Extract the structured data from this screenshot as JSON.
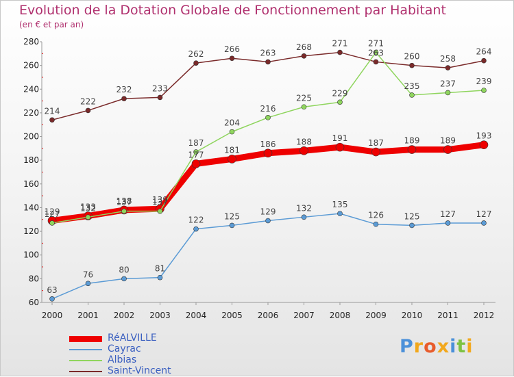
{
  "title": "Evolution de la Dotation Globale de Fonctionnement par Habitant",
  "subtitle": "(en € et par an)",
  "logo": {
    "text": "Proxiti",
    "letters": [
      {
        "ch": "P",
        "color": "#4a90d9"
      },
      {
        "ch": "r",
        "color": "#f2a81d"
      },
      {
        "ch": "o",
        "color": "#e85c2c"
      },
      {
        "ch": "x",
        "color": "#f2a81d"
      },
      {
        "ch": "i",
        "color": "#4a90d9"
      },
      {
        "ch": "t",
        "color": "#7dc242"
      },
      {
        "ch": "i",
        "color": "#f2a81d"
      }
    ]
  },
  "chart_data": {
    "type": "line",
    "title": "Evolution de la Dotation Globale de Fonctionnement par Habitant",
    "subtitle": "(en € et par an)",
    "x": [
      "2000",
      "2001",
      "2002",
      "2003",
      "2004",
      "2005",
      "2006",
      "2007",
      "2008",
      "2009",
      "2010",
      "2011",
      "2012"
    ],
    "y_ticks": [
      60,
      80,
      100,
      120,
      140,
      160,
      180,
      200,
      220,
      240,
      260,
      280
    ],
    "ylim": [
      60,
      280
    ],
    "grid": false,
    "legend_position": "bottom-left",
    "series": [
      {
        "name": "RéALVILLE",
        "color": "#ee0000",
        "values": [
          129,
          133,
          138,
          139,
          177,
          181,
          186,
          188,
          191,
          187,
          189,
          189,
          193
        ],
        "labels": [
          "129",
          "133",
          "138",
          "139",
          "177",
          "181",
          "186",
          "188",
          "191",
          "187",
          "189",
          "189",
          "193"
        ],
        "emphasis": true
      },
      {
        "name": "Cayrac",
        "color": "#5b9bd5",
        "values": [
          63,
          76,
          80,
          81,
          122,
          125,
          129,
          132,
          135,
          126,
          125,
          127,
          127
        ],
        "labels": [
          "63",
          "76",
          "80",
          "81",
          "122",
          "125",
          "129",
          "132",
          "135",
          "126",
          "125",
          "127",
          "127"
        ]
      },
      {
        "name": "Albias",
        "color": "#8fd55e",
        "values": [
          127,
          132,
          137,
          137,
          187,
          204,
          216,
          225,
          229,
          271,
          235,
          237,
          239
        ],
        "labels": [
          "127",
          "132",
          "137",
          "137",
          "187",
          "204",
          "216",
          "225",
          "229",
          "271",
          "235",
          "237",
          "239"
        ]
      },
      {
        "name": "Saint-Vincent",
        "color": "#7a2a2a",
        "values": [
          214,
          222,
          232,
          233,
          262,
          266,
          263,
          268,
          271,
          263,
          260,
          258,
          264
        ],
        "labels": [
          "214",
          "222",
          "232",
          "233",
          "262",
          "266",
          "263",
          "268",
          "271",
          "263",
          "260",
          "258",
          "264"
        ]
      }
    ]
  }
}
